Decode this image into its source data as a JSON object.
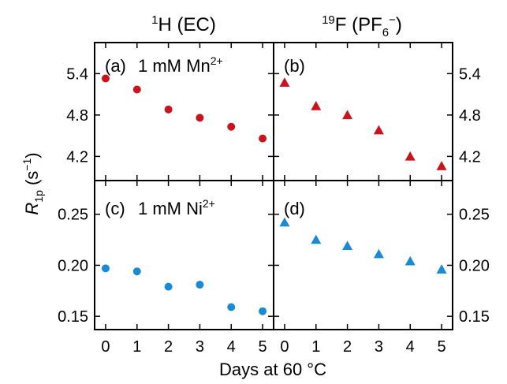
{
  "colors": {
    "mn_series": "#c8141e",
    "ni_series": "#1a8ad2",
    "axis": "#000000"
  },
  "chart_data": {
    "type": "scatter",
    "grid": false,
    "column_titles": {
      "left": {
        "sup": "1",
        "main": "H (EC)"
      },
      "right": {
        "sup": "19",
        "main": "F (PF",
        "sub": "6",
        "sup2": "−",
        "close": ")"
      }
    },
    "ylabel": {
      "italic": "R",
      "sub": "1p",
      "unit": " (s",
      "unit_sup": "−1",
      "unit_close": ")"
    },
    "xlabel": "Days at 60 °C",
    "x_ticks": [
      "0",
      "1",
      "2",
      "3",
      "4",
      "5"
    ],
    "xlim": [
      -0.35,
      5.35
    ],
    "rows": [
      {
        "ylim": [
          3.85,
          5.85
        ],
        "y_ticks": [
          5.4,
          4.8,
          4.2
        ],
        "y_tick_labels": [
          "5.4",
          "4.8",
          "4.2"
        ],
        "label": {
          "main": "1 mM Mn",
          "sup": "2+"
        },
        "color_key": "mn_series"
      },
      {
        "ylim": [
          0.137,
          0.283
        ],
        "y_ticks": [
          0.25,
          0.2,
          0.15
        ],
        "y_tick_labels": [
          "0.25",
          "0.20",
          "0.15"
        ],
        "label": {
          "main": "1 mM Ni",
          "sup": "2+"
        },
        "color_key": "ni_series"
      }
    ],
    "panels": [
      {
        "id": "a",
        "label": "(a)",
        "row": 0,
        "col": 0,
        "marker": "circle",
        "x": [
          0,
          1,
          2,
          3,
          4,
          5
        ],
        "y": [
          5.33,
          5.17,
          4.88,
          4.76,
          4.63,
          4.46
        ]
      },
      {
        "id": "b",
        "label": "(b)",
        "row": 0,
        "col": 1,
        "marker": "triangle",
        "x": [
          0,
          1,
          2,
          3,
          4,
          5
        ],
        "y": [
          5.27,
          4.93,
          4.8,
          4.58,
          4.2,
          4.06
        ]
      },
      {
        "id": "c",
        "label": "(c)",
        "row": 1,
        "col": 0,
        "marker": "circle",
        "x": [
          0,
          1,
          2,
          3,
          4,
          5
        ],
        "y": [
          0.197,
          0.194,
          0.179,
          0.181,
          0.159,
          0.155
        ]
      },
      {
        "id": "d",
        "label": "(d)",
        "row": 1,
        "col": 1,
        "marker": "triangle",
        "x": [
          0,
          1,
          2,
          3,
          4,
          5
        ],
        "y": [
          0.242,
          0.225,
          0.219,
          0.211,
          0.204,
          0.196
        ]
      }
    ]
  }
}
